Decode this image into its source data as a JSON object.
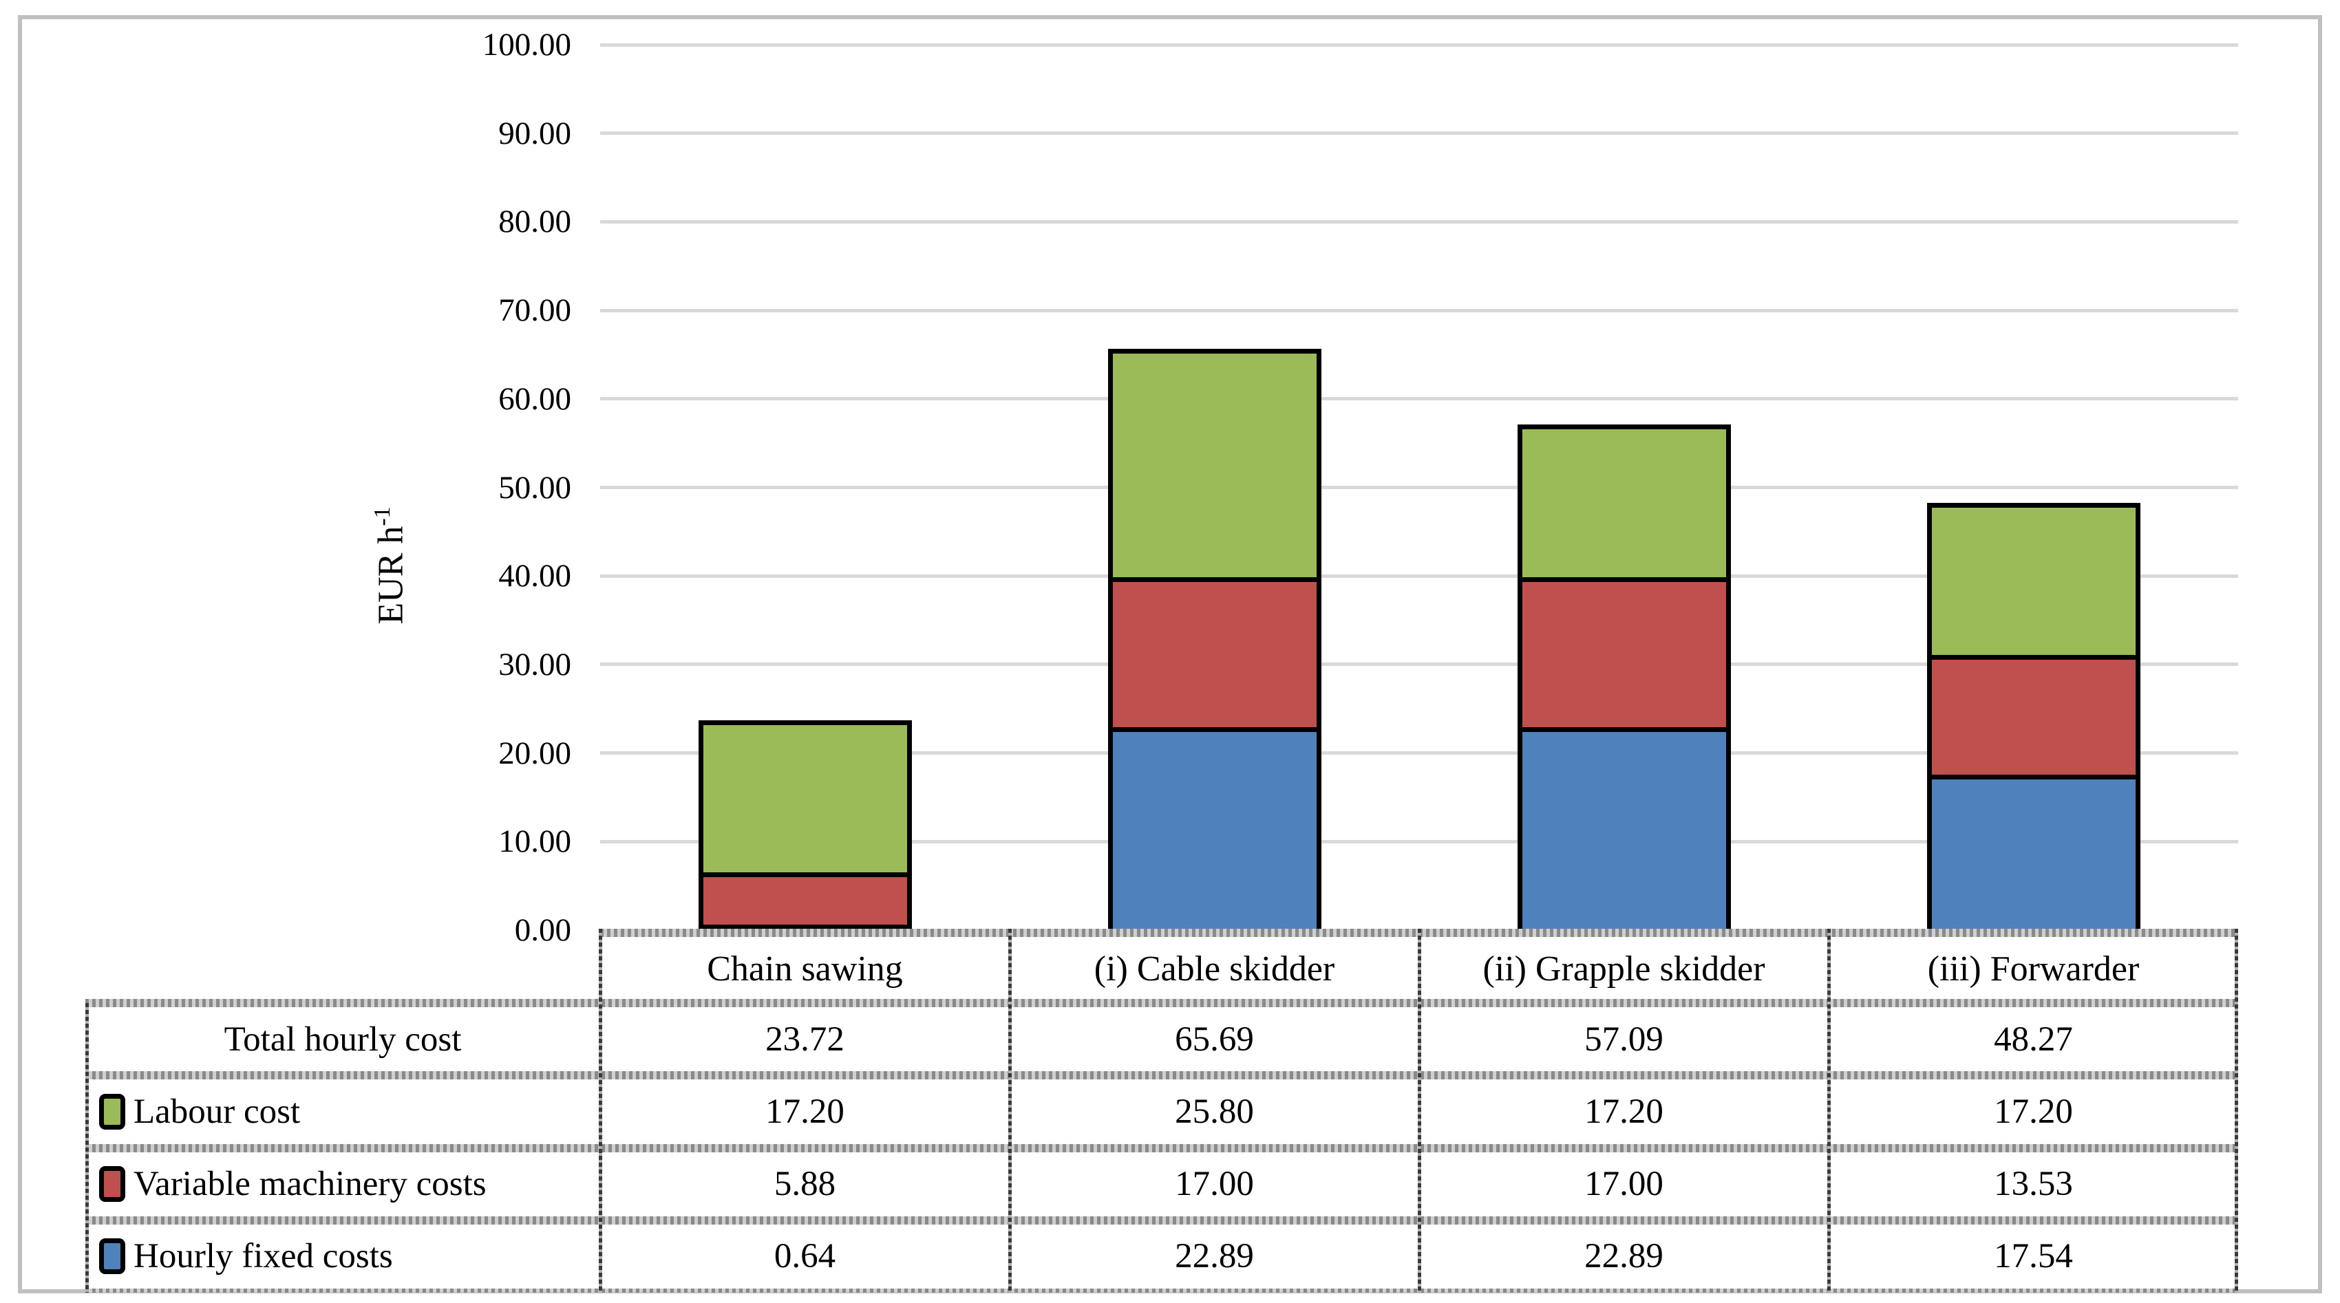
{
  "chart_data": {
    "type": "bar",
    "stacked": true,
    "ylabel_text": "EUR h",
    "ylabel_sup": "-1",
    "ylim": [
      0,
      100
    ],
    "ytick_step": 10,
    "ytick_decimals": 2,
    "grid": true,
    "legend_position": "table-rows-left",
    "categories": [
      "Chain sawing",
      "(i) Cable skidder",
      "(ii) Grapple skidder",
      "(iii) Forwarder"
    ],
    "series": [
      {
        "name": "Hourly fixed costs",
        "color": "#4F81BD",
        "values": [
          0.64,
          22.89,
          22.89,
          17.54
        ]
      },
      {
        "name": "Variable machinery costs",
        "color": "#C0504D",
        "values": [
          5.88,
          17.0,
          17.0,
          13.53
        ]
      },
      {
        "name": "Labour cost",
        "color": "#9BBB59",
        "values": [
          17.2,
          25.8,
          17.2,
          17.2
        ]
      }
    ],
    "totals": [
      23.72,
      65.69,
      57.09,
      48.27
    ]
  },
  "table": {
    "header": [
      "Chain sawing",
      "(i) Cable skidder",
      "(ii) Grapple skidder",
      "(iii) Forwarder"
    ],
    "rows": [
      {
        "label": "Total hourly cost",
        "swatch": null,
        "values": [
          "23.72",
          "65.69",
          "57.09",
          "48.27"
        ]
      },
      {
        "label": "Labour cost",
        "swatch": "#9BBB59",
        "values": [
          "17.20",
          "25.80",
          "17.20",
          "17.20"
        ]
      },
      {
        "label": "Variable machinery costs",
        "swatch": "#C0504D",
        "values": [
          "5.88",
          "17.00",
          "17.00",
          "13.53"
        ]
      },
      {
        "label": "Hourly fixed costs",
        "swatch": "#4F81BD",
        "values": [
          "0.64",
          "22.89",
          "22.89",
          "17.54"
        ]
      }
    ]
  },
  "colors": {
    "grid": "#D9D9D9",
    "frame": "#C0C0C0",
    "bar_border": "#000000"
  }
}
